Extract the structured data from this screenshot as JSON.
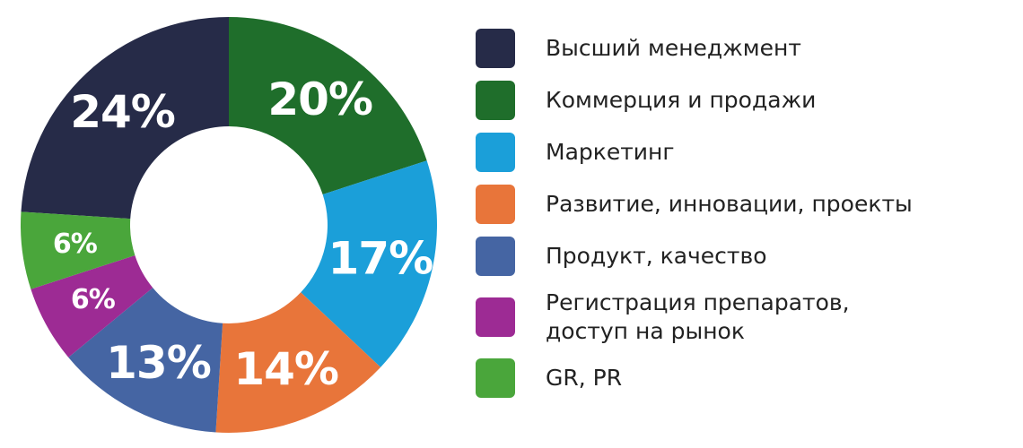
{
  "chart_data": {
    "type": "donut",
    "categories": [
      "Высший менеджмент",
      "Коммерция и продажи",
      "Маркетинг",
      "Развитие, инновации, проекты",
      "Продукт, качество",
      "Регистрация препаратов, доступ на рынок",
      "GR, PR"
    ],
    "values": [
      24,
      20,
      17,
      14,
      13,
      6,
      6
    ],
    "value_labels": [
      "24%",
      "20%",
      "17%",
      "14%",
      "13%",
      "6%",
      "6%"
    ],
    "colors": [
      "#262b48",
      "#1f6e2b",
      "#1b9fd9",
      "#e8753a",
      "#4565a3",
      "#9d2b94",
      "#4aa63b"
    ]
  }
}
